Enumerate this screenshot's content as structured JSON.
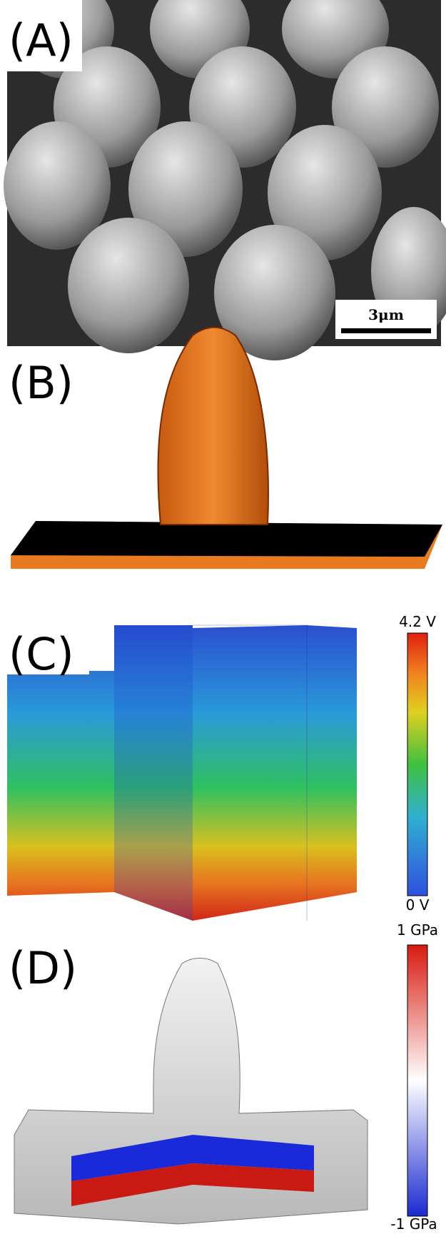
{
  "panels": [
    {
      "label": "(A)",
      "scale_bar": "3μm"
    },
    {
      "label": "(B)"
    },
    {
      "label": "(C)",
      "colorbar": {
        "top": "4.2 V",
        "bottom": "0 V"
      }
    },
    {
      "label": "(D)",
      "colorbar": {
        "top": "1 GPa",
        "bottom": "-1 GPa"
      }
    }
  ]
}
